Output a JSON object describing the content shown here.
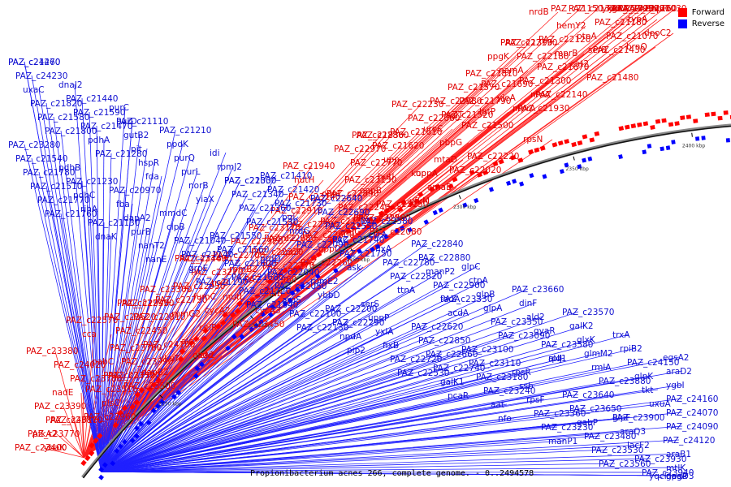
{
  "legend": [
    {
      "label": "Forward",
      "color": "#ff0000"
    },
    {
      "label": "Reverse",
      "color": "#0000ff"
    }
  ],
  "caption": "Propionibacterium acnes 266, complete genome. - 0..2494578",
  "ticks": [
    "2150 kbp",
    "2200 kbp",
    "2250 kbp",
    "2300 kbp",
    "2350 kbp",
    "2400 kbp",
    "2450 kbp"
  ],
  "forward_labels": [
    "PAZ_c23400",
    "pfkA2",
    "PAZ_c23870",
    "PAZ_c23390",
    "nadE",
    "PAZ_c23780",
    "PAZ_c24020",
    "PAZ_c23380",
    "ybaK",
    "PAZ_c23770",
    "PAZ_c24010",
    "PAZ_c23320",
    "pabC",
    "PAZ_c23760",
    "cca",
    "PAZ_c22570",
    "PAZ_c22960",
    "plsC",
    "PAZ_c23510",
    "PAZ_c23750",
    "PAZ_c23990",
    "PAZ_c22520",
    "PAZ_c22950",
    "PAZ_c23300",
    "PAZ_c23500",
    "dapB2",
    "ykuT",
    "PAZ_c24100",
    "PAZ_c22450",
    "PAZ_c22810",
    "PAZ_c22940",
    "PAZ_c23490",
    "add",
    "alr",
    "celR",
    "rpmG2",
    "PAZ_c22730",
    "PAZ_c22930",
    "PAZ_c23270",
    "PAZ_c23460",
    "gltA2",
    "cycA3",
    "fumC",
    "trxB",
    "rpmB2",
    "PAZ_c22700",
    "PAZ_c22920",
    "PAZ_c23170",
    "PAZ_c23450",
    "cycA2",
    "mutL",
    "PAZ_c22320",
    "rpmF2",
    "PAZ_c22590",
    "PAZ_c22910",
    "PAZ_c23140",
    "dnaB",
    "PAZ_c21960",
    "PAZ_c22270",
    "appF",
    "PAZ_c22680",
    "PAZ_c22890",
    "PAZ_c23130",
    "PAZ_c21940",
    "PAZ_c22260",
    "oppD",
    "PAZ_c22600",
    "PAZ_c21920",
    "PAZ_c22240",
    "oppC",
    "hutH",
    "PAZ_c22860",
    "argG",
    "PAZ_c21860",
    "PAZ_c22150",
    "oppB",
    "hutI",
    "PAZ_c22770",
    "PAZ_c22970",
    "PAZ_c21830",
    "PAZ_c22080",
    "PAZ_c22250",
    "oppA",
    "mtaD",
    "PAZ_c21620",
    "PAZ_c21610",
    "PAZ_c22060",
    "PAZ_c22230",
    "yfkM",
    "amaB",
    "kup",
    "upp",
    "sglT",
    "PAZ_c22980",
    "PAZ_c21570",
    "PAZ_c21810",
    "PAZ_c22020",
    "PAZ_c22220",
    "pbpG",
    "uroC",
    "PAZ_c21520",
    "PAZ_c21790",
    "ppgK",
    "PAZ_c22190",
    "rpsN",
    "PAZ_c21500",
    "lgtP",
    "yjeA",
    "PAZ_c21690",
    "namA",
    "PAZ_c22180",
    "PAZ_c21390",
    "PAZ_c21930",
    "PAZ_c22140",
    "PAZ_c21300",
    "PAZ_c21670",
    "mprB",
    "PAZ_c22120",
    "hemY2",
    "nrdB",
    "mprA",
    "nrdA",
    "PAZ_c21430",
    "ptpA",
    "PAZ_c21180",
    "PAZ_c21370",
    "PAZ_c21150",
    "PAZ_c21310",
    "PAZ_c21480",
    "cat2",
    "serB",
    "PAZ_c21070",
    "PAZ_c21030",
    "PAZ_c20990",
    "PAZ_c21160",
    "ytnA",
    "brnQ",
    "deoC2",
    "typA",
    "ahpF",
    "PAZ_c20730",
    "ykgC"
  ],
  "reverse_labels": [
    "PAZ_c24270",
    "PAZ_c24230",
    "uxaC",
    "PAZ_c21820",
    "PAZ_c21580",
    "PAZ_c21800",
    "PAZ_c23280",
    "PAZ_c21540",
    "PAZ_c21780",
    "PAZ_c21510",
    "PAZ_c21770",
    "PAZ_c21760",
    "PAZ_c21460",
    "PAZ_c21440",
    "PAZ_c21590",
    "PAZ_c21470",
    "pdhA",
    "PAZ_c21280",
    "pdhB",
    "PAZ_c21230",
    "pdhC",
    "rihA",
    "PAZ_c21130",
    "dnaK",
    "dnaJ2",
    "PAZ_c21110",
    "gutB2",
    "pit",
    "hspR",
    "fda",
    "PAZ_c20970",
    "fba",
    "dapA2",
    "purB",
    "nanT2",
    "nanE",
    "purC",
    "purD",
    "purQ",
    "purL",
    "norB",
    "yiaX",
    "mmdC",
    "clpB",
    "PAZ_c21040",
    "PAZ_c21140",
    "grpE",
    "PAZ_c21190",
    "PAZ_c21210",
    "ppdK",
    "PAZ_c21330",
    "PAZ_c21340",
    "PAZ_c21360",
    "PAZ_c21530",
    "PAZ_c21550",
    "PAZ_c21560",
    "PAZ_c21600",
    "PAZ_c21680",
    "PAZ_c21720",
    "PAZ_c21840",
    "idi",
    "rpmJ2",
    "PAZ_c22000",
    "pgi",
    "nrdG",
    "PAZ_c22090",
    "nrdD",
    "PAZ_c22040",
    "PAZ_c22050",
    "argS",
    "PAZ_c22100",
    "PAZ_c22130",
    "PAZ_c21410",
    "PAZ_c21420",
    "PAZ_c21730",
    "PAZ_c21740",
    "PAZ_c21750",
    "ask",
    "rpmE2",
    "ybbD",
    "PAZ_c22200",
    "PAZ_c22290",
    "npdA",
    "pip2",
    "PAZ_c22640",
    "PAZ_c22690",
    "PAZ_c22550",
    "fixC",
    "PAZ_c22820",
    "ttnA",
    "serS",
    "uppP",
    "yxlA",
    "fixB",
    "PAZ_c22720",
    "PAZ_c22530",
    "PAZ_c22580",
    "cvrA",
    "fixA",
    "PAZ_c22780",
    "tadA",
    "acdA",
    "PAZ_c22620",
    "PAZ_c22850",
    "PAZ_c22660",
    "PAZ_c22740",
    "galK1",
    "pcaR",
    "PAZ_c22840",
    "PAZ_c22880",
    "manP2",
    "PAZ_c22900",
    "PAZ_c23330",
    "PAZ_c23090",
    "PAZ_c23100",
    "PAZ_c23110",
    "PAZ_c23180",
    "PAZ_c23240",
    "aat",
    "nfo",
    "glpC",
    "ctpA",
    "glpB",
    "glpA",
    "PAZ_c23350",
    "rpIJ",
    "rpsR",
    "ssb",
    "rpsF",
    "PAZ_c23360",
    "PAZ_c23230",
    "manP1",
    "PAZ_c23660",
    "dinF",
    "ald2",
    "gyaR",
    "PAZ_c23580",
    "ald1",
    "PAZ_c23640",
    "PAZ_c23650",
    "gabP",
    "PAZ_c23480",
    "PAZ_c23530",
    "PAZ_c23560",
    "PAZ_c23570",
    "galK2",
    "glxK",
    "glmM2",
    "rmlA",
    "PAZ_c23880",
    "PAZ_c23900",
    "araQ3",
    "lacF2",
    "PAZ_c23930",
    "PAZ_c23940",
    "yqcF",
    "trxA",
    "rpiB2",
    "PAZ_c24150",
    "glpK",
    "tkt",
    "uxuA",
    "glpF",
    "araB1",
    "mtlK",
    "gpsA",
    "nagD3",
    "degP",
    "egsA2",
    "araD2",
    "ygbI",
    "PAZ_c24160",
    "PAZ_c24070",
    "PAZ_c24090",
    "PAZ_c24120"
  ]
}
